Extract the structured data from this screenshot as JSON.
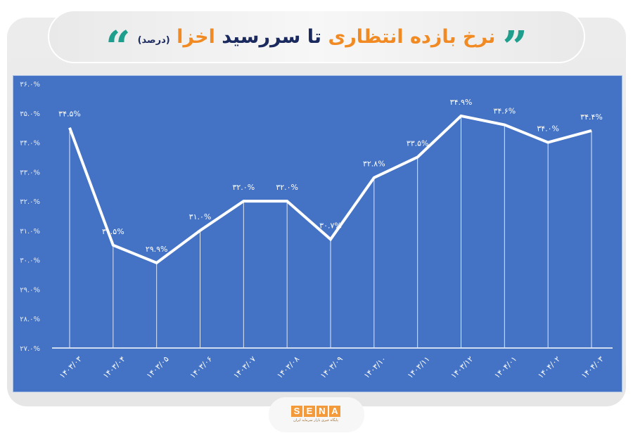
{
  "header": {
    "title_parts": [
      {
        "text": "نرخ بازده انتظاری",
        "color": "#f18a22"
      },
      {
        "text": "تا سررسید",
        "color": "#1b2a5e"
      },
      {
        "text": "اخزا",
        "color": "#f18a22"
      }
    ],
    "subtitle": "(درصد)",
    "quote_open": "“",
    "quote_close": "”",
    "quote_color": "#1e9e8c"
  },
  "colors": {
    "panel_bg": "#4472c4",
    "line": "#ffffff",
    "accent_orange": "#f18a22",
    "accent_navy": "#1b2a5e",
    "accent_teal": "#1e9e8c"
  },
  "chart_data": {
    "type": "line",
    "title": "نرخ بازده انتظاری تا سررسید اخزا (درصد)",
    "xlabel": "",
    "ylabel": "",
    "ylim": [
      27.0,
      36.0
    ],
    "y_ticks": [
      27.0,
      28.0,
      29.0,
      30.0,
      31.0,
      32.0,
      33.0,
      34.0,
      35.0,
      36.0
    ],
    "y_tick_labels": [
      "۲۷.۰%",
      "۲۸.۰%",
      "۲۹.۰%",
      "۳۰.۰%",
      "۳۱.۰%",
      "۳۲.۰%",
      "۳۳.۰%",
      "۳۴.۰%",
      "۳۵.۰%",
      "۳۶.۰%"
    ],
    "grid": false,
    "drop_lines": true,
    "legend": null,
    "categories": [
      "۱۴۰۳/۰۳",
      "۱۴۰۳/۰۴",
      "۱۴۰۳/۰۵",
      "۱۴۰۳/۰۶",
      "۱۴۰۳/۰۷",
      "۱۴۰۳/۰۸",
      "۱۴۰۳/۰۹",
      "۱۴۰۳/۱۰",
      "۱۴۰۳/۱۱",
      "۱۴۰۳/۱۲",
      "۱۴۰۴/۰۱",
      "۱۴۰۴/۰۲",
      "۱۴۰۴/۰۳"
    ],
    "categories_latin": [
      "1403/03",
      "1403/04",
      "1403/05",
      "1403/06",
      "1403/07",
      "1403/08",
      "1403/09",
      "1403/10",
      "1403/11",
      "1403/12",
      "1404/01",
      "1404/02",
      "1404/03"
    ],
    "values": [
      34.5,
      30.5,
      29.9,
      31.0,
      32.0,
      32.0,
      30.7,
      32.8,
      33.5,
      34.9,
      34.6,
      34.0,
      34.4
    ],
    "data_labels": [
      "۳۴.۵%",
      "۳۰.۵%",
      "۲۹.۹%",
      "۳۱.۰%",
      "۳۲.۰%",
      "۳۲.۰%",
      "۳۰.۷%",
      "۳۲.۸%",
      "۳۳.۵%",
      "۳۴.۹%",
      "۳۴.۶%",
      "۳۴.۰%",
      "۳۴.۴%"
    ]
  },
  "footer": {
    "logo_letters": [
      "S",
      "E",
      "N",
      "A"
    ],
    "logo_caption": "پایگاه خبری بازار سرمایه ایران"
  }
}
